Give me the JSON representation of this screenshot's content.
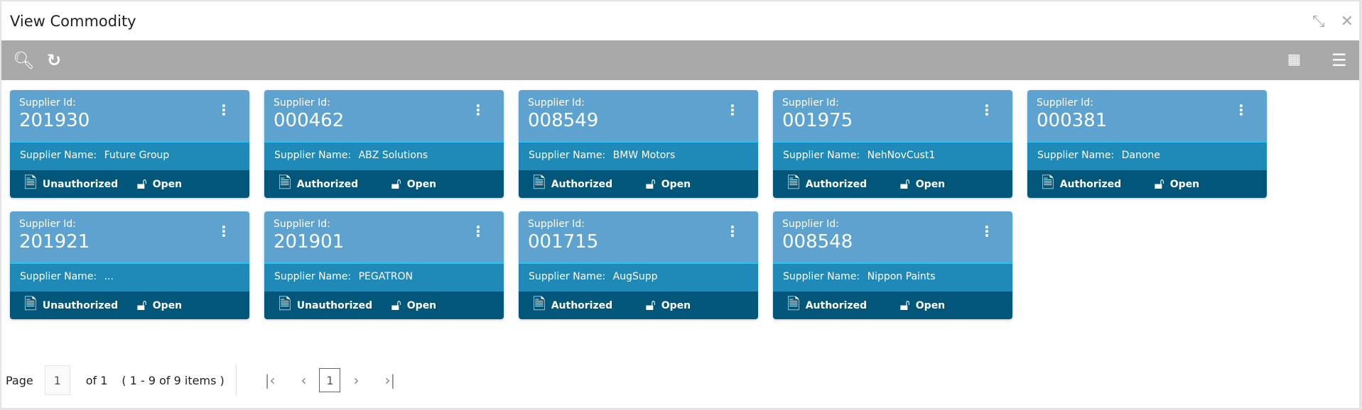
{
  "window": {
    "title": "View Commodity",
    "minimize_icon": "collapse-icon",
    "close_icon": "close-icon"
  },
  "toolbar": {
    "search_icon": "search-icon",
    "refresh_icon": "refresh-icon",
    "grid_view_icon": "grid-icon",
    "list_view_icon": "list-icon"
  },
  "card_labels": {
    "id_label": "Supplier Id:",
    "name_label": "Supplier Name:"
  },
  "cards": [
    {
      "id": "201930",
      "name": "Future Group",
      "auth": "Unauthorized",
      "lock": "Open"
    },
    {
      "id": "000462",
      "name": "ABZ Solutions",
      "auth": "Authorized",
      "lock": "Open"
    },
    {
      "id": "008549",
      "name": "BMW Motors",
      "auth": "Authorized",
      "lock": "Open"
    },
    {
      "id": "001975",
      "name": "NehNovCust1",
      "auth": "Authorized",
      "lock": "Open"
    },
    {
      "id": "000381",
      "name": "Danone",
      "auth": "Authorized",
      "lock": "Open"
    },
    {
      "id": "201921",
      "name": "...",
      "auth": "Unauthorized",
      "lock": "Open"
    },
    {
      "id": "201901",
      "name": "PEGATRON",
      "auth": "Unauthorized",
      "lock": "Open"
    },
    {
      "id": "001715",
      "name": "AugSupp",
      "auth": "Authorized",
      "lock": "Open"
    },
    {
      "id": "008548",
      "name": "Nippon Paints",
      "auth": "Authorized",
      "lock": "Open"
    }
  ],
  "colors": {
    "card_header": "#5ea3d0",
    "card_name": "#1f8ab8",
    "card_footer": "#02567a",
    "toolbar": "#a9a9a9"
  },
  "pagination": {
    "page_label": "Page",
    "page_value": "1",
    "of_label": "of 1",
    "items_label": "( 1 - 9 of 9 items )",
    "current": "1"
  }
}
